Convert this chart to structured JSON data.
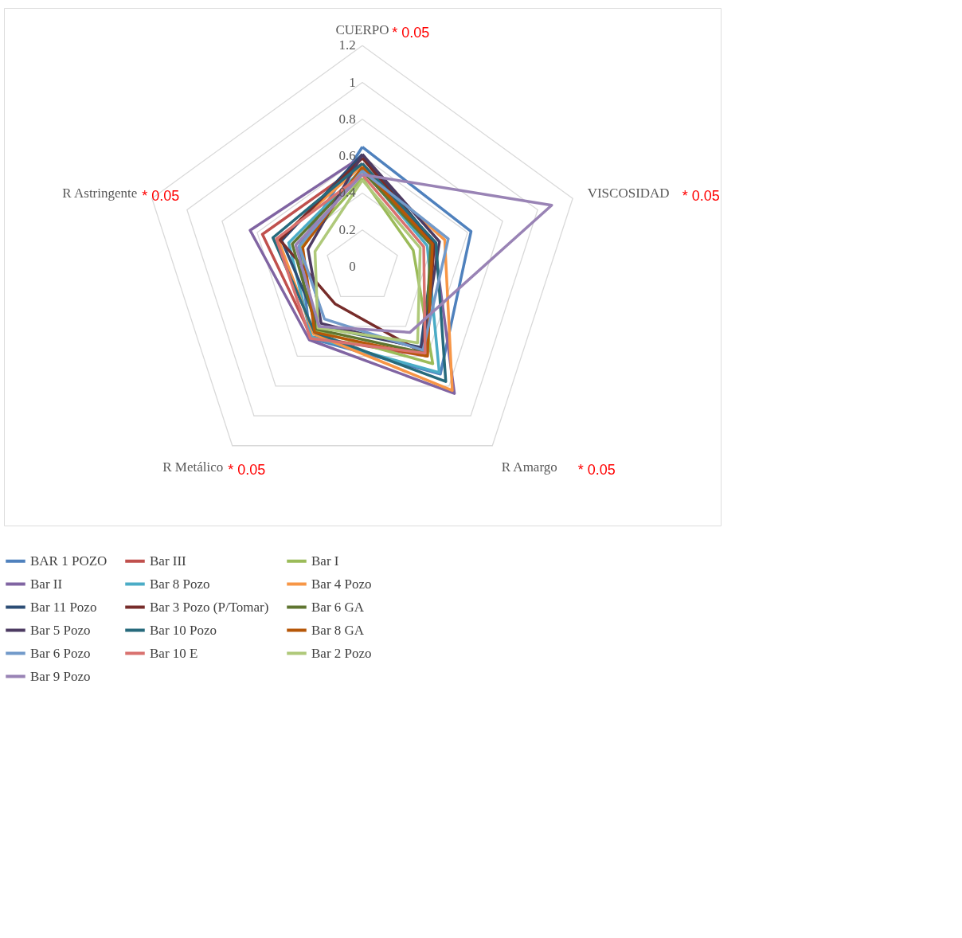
{
  "chart_data": {
    "type": "radar",
    "categories": [
      "CUERPO",
      "VISCOSIDAD",
      "R Amargo",
      "R Metálico",
      "R Astringente"
    ],
    "ylim": [
      0,
      1.2
    ],
    "yticks": [
      0,
      0.2,
      0.4,
      0.6,
      0.8,
      1,
      1.2
    ],
    "grid": true,
    "legend": "bottom",
    "annotations": [
      "* 0.05",
      "* 0.05",
      "* 0.05",
      "* 0.05",
      "* 0.05"
    ],
    "series": [
      {
        "name": "BAR 1 POZO",
        "color": "#4f81bd",
        "values": [
          0.65,
          0.62,
          0.72,
          0.48,
          0.36
        ]
      },
      {
        "name": "Bar III",
        "color": "#c0504d",
        "values": [
          0.56,
          0.4,
          0.6,
          0.47,
          0.57
        ]
      },
      {
        "name": "Bar I",
        "color": "#9bbb59",
        "values": [
          0.48,
          0.29,
          0.65,
          0.43,
          0.35
        ]
      },
      {
        "name": "Bar II",
        "color": "#8064a2",
        "values": [
          0.6,
          0.41,
          0.85,
          0.49,
          0.64
        ]
      },
      {
        "name": "Bar 8 Pozo",
        "color": "#4bacc6",
        "values": [
          0.53,
          0.37,
          0.71,
          0.47,
          0.42
        ]
      },
      {
        "name": "Bar 4 Pozo",
        "color": "#f79646",
        "values": [
          0.55,
          0.47,
          0.83,
          0.45,
          0.48
        ]
      },
      {
        "name": "Bar 11 Pozo",
        "color": "#2c4d75",
        "values": [
          0.61,
          0.41,
          0.54,
          0.4,
          0.46
        ]
      },
      {
        "name": "Bar 3 Pozo (P/Tomar)",
        "color": "#772c2a",
        "values": [
          0.59,
          0.41,
          0.59,
          0.25,
          0.47
        ]
      },
      {
        "name": "Bar 6 GA",
        "color": "#5f7530",
        "values": [
          0.52,
          0.39,
          0.58,
          0.42,
          0.4
        ]
      },
      {
        "name": "Bar 5 Pozo",
        "color": "#4d3b62",
        "values": [
          0.61,
          0.44,
          0.55,
          0.38,
          0.31
        ]
      },
      {
        "name": "Bar 10 Pozo",
        "color": "#276a7c",
        "values": [
          0.56,
          0.42,
          0.77,
          0.44,
          0.51
        ]
      },
      {
        "name": "Bar 8 GA",
        "color": "#b65708",
        "values": [
          0.54,
          0.4,
          0.6,
          0.44,
          0.34
        ]
      },
      {
        "name": "Bar 6 Pozo",
        "color": "#729aca",
        "values": [
          0.52,
          0.49,
          0.56,
          0.35,
          0.36
        ]
      },
      {
        "name": "Bar 10 E",
        "color": "#d9726f",
        "values": [
          0.5,
          0.35,
          0.58,
          0.48,
          0.49
        ]
      },
      {
        "name": "Bar 2 Pozo",
        "color": "#afc97a",
        "values": [
          0.47,
          0.33,
          0.51,
          0.41,
          0.27
        ]
      },
      {
        "name": "Bar 9 Pozo",
        "color": "#9983b5",
        "values": [
          0.5,
          1.08,
          0.44,
          0.4,
          0.38
        ]
      }
    ]
  }
}
